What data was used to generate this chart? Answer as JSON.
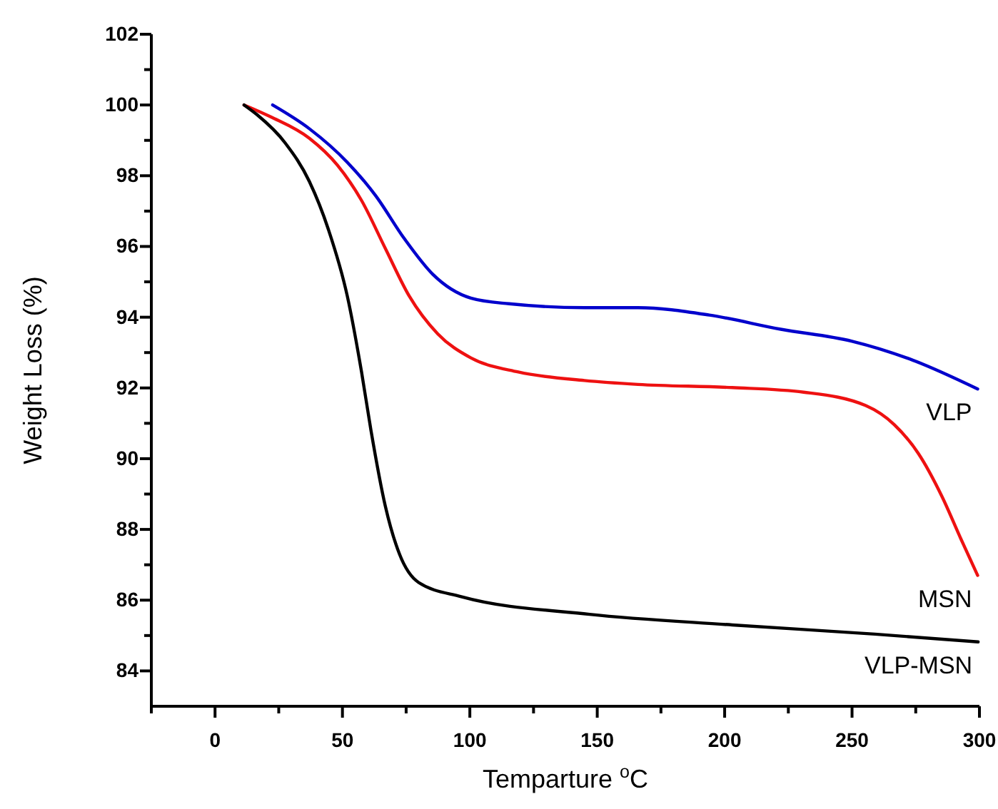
{
  "chart_data": {
    "type": "line",
    "xlabel": "Temparture $^{o}$C",
    "ylabel": "Weight Loss (%)",
    "xlim": [
      -25,
      300
    ],
    "ylim": [
      83,
      102
    ],
    "xticks": [
      {
        "value": -25,
        "label": null
      },
      0,
      {
        "value": 25,
        "label": null
      },
      50,
      {
        "value": 75,
        "label": null
      },
      100,
      {
        "value": 125,
        "label": null
      },
      150,
      {
        "value": 175,
        "label": null
      },
      200,
      {
        "value": 225,
        "label": null
      },
      250,
      {
        "value": 275,
        "label": null
      },
      300
    ],
    "yticks": [
      84,
      {
        "value": 85,
        "label": null
      },
      86,
      {
        "value": 87,
        "label": null
      },
      88,
      {
        "value": 89,
        "label": null
      },
      90,
      {
        "value": 91,
        "label": null
      },
      92,
      {
        "value": 93,
        "label": null
      },
      94,
      {
        "value": 95,
        "label": null
      },
      96,
      {
        "value": 97,
        "label": null
      },
      98,
      {
        "value": 99,
        "label": null
      },
      100,
      {
        "value": 101,
        "label": null
      },
      102
    ],
    "grid": false,
    "legend": false,
    "marker": "none",
    "line_style": "solid",
    "series": [
      {
        "name": "VLP",
        "color": "#0000cc",
        "x": [
          22.6,
          37,
          51.9,
          63,
          74.3,
          85.5,
          100.4,
          115.4,
          145,
          166,
          194,
          222,
          250,
          274,
          299.3
        ],
        "values": [
          100,
          99.33,
          98.38,
          97.44,
          96.22,
          95.21,
          94.54,
          94.38,
          94.27,
          94.27,
          94.06,
          93.66,
          93.32,
          92.78,
          91.97
        ]
      },
      {
        "name": "MSN",
        "color": "#ee1111",
        "x": [
          11.4,
          22,
          37,
          48,
          57.5,
          66.8,
          76.2,
          87.4,
          100.4,
          119,
          145,
          166,
          203,
          231,
          255.4,
          266.6,
          276,
          285.3,
          292.8,
          299.3
        ],
        "values": [
          100,
          99.66,
          99.06,
          98.3,
          97.3,
          95.95,
          94.6,
          93.53,
          92.85,
          92.45,
          92.21,
          92.1,
          92.01,
          91.88,
          91.5,
          90.96,
          90.15,
          88.93,
          87.72,
          86.7
        ]
      },
      {
        "name": "VLP-MSN",
        "color": "#000000",
        "x": [
          11.4,
          16.4,
          27.6,
          37,
          44.4,
          51.9,
          57.5,
          61.2,
          66.8,
          72.4,
          79.9,
          96.6,
          147,
          203,
          259,
          299.5
        ],
        "values": [
          100,
          99.73,
          98.92,
          97.84,
          96.5,
          94.6,
          92.45,
          90.8,
          88.67,
          87.3,
          86.5,
          86.1,
          85.6,
          85.3,
          85.04,
          84.82
        ]
      }
    ]
  }
}
